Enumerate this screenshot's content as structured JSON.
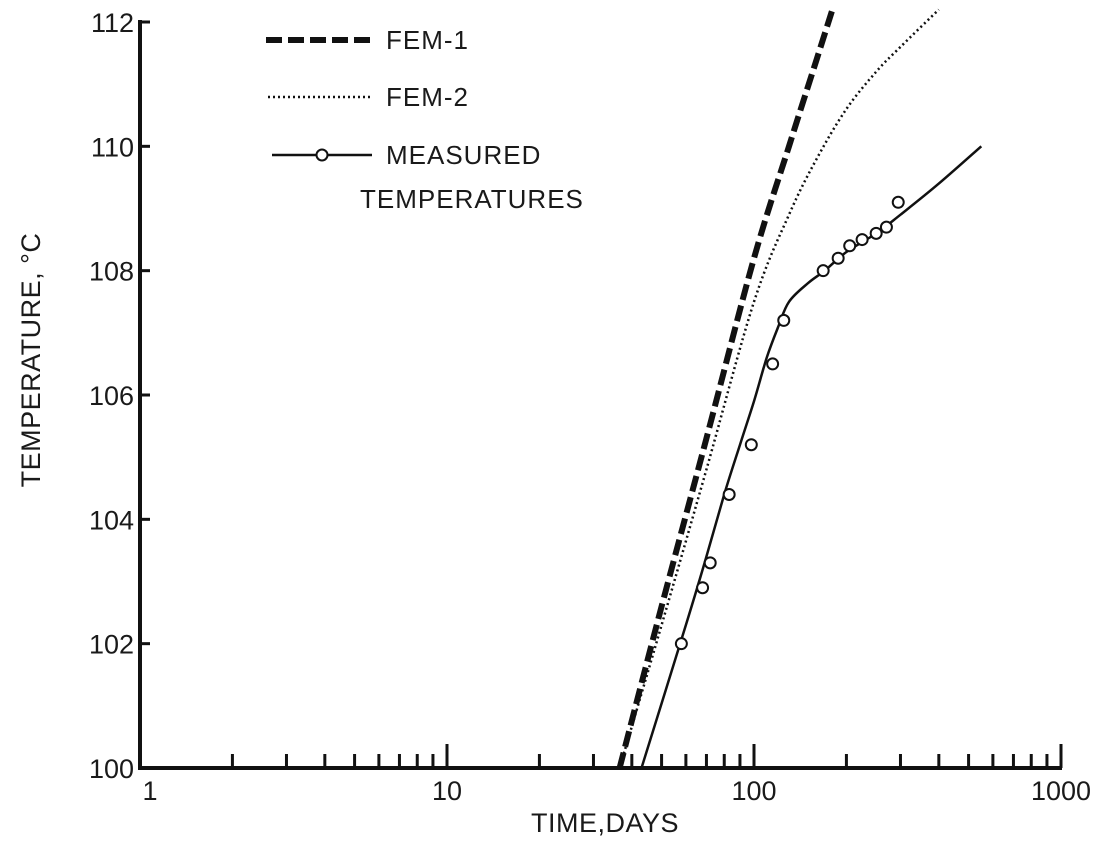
{
  "chart_data": {
    "type": "line",
    "title": "",
    "xlabel": "TIME,DAYS",
    "ylabel": "TEMPERATURE, °C",
    "xscale": "log",
    "xlim": [
      1,
      1000
    ],
    "ylim": [
      100,
      112
    ],
    "x_tick_labels": [
      "1",
      "10",
      "100",
      "1000"
    ],
    "x_ticks": [
      1,
      10,
      100,
      1000
    ],
    "y_tick_labels": [
      "100",
      "102",
      "104",
      "106",
      "108",
      "110",
      "112"
    ],
    "y_ticks": [
      100,
      102,
      104,
      106,
      108,
      110,
      112
    ],
    "grid": false,
    "legend_position": "top-left",
    "series": [
      {
        "name": "FEM-1",
        "style": "dashed-thick",
        "x": [
          36.5,
          50,
          70,
          100,
          130,
          160,
          180
        ],
        "y": [
          100.0,
          102.6,
          105.3,
          108.2,
          110.0,
          111.4,
          112.2
        ]
      },
      {
        "name": "FEM-2",
        "style": "dotted",
        "x": [
          36.5,
          50,
          70,
          100,
          130,
          160,
          200,
          250,
          300,
          400
        ],
        "y": [
          100.0,
          102.3,
          104.8,
          107.5,
          108.9,
          109.8,
          110.6,
          111.2,
          111.6,
          112.2
        ]
      },
      {
        "name": "MEASURED TEMPERATURES",
        "style": "solid-with-circles",
        "x": [
          43,
          60,
          70,
          80,
          90,
          100,
          110,
          120,
          130,
          150,
          170,
          200,
          250,
          300,
          400,
          550
        ],
        "y": [
          100.0,
          102.3,
          103.4,
          104.4,
          105.2,
          105.9,
          106.6,
          107.1,
          107.5,
          107.8,
          108.0,
          108.3,
          108.6,
          108.9,
          109.4,
          110.0
        ]
      }
    ],
    "measured_points": {
      "x": [
        58,
        68,
        72,
        83,
        98,
        115,
        125,
        168,
        188,
        205,
        225,
        250,
        270,
        295
      ],
      "y": [
        102.0,
        102.9,
        103.3,
        104.4,
        105.2,
        106.5,
        107.2,
        108.0,
        108.2,
        108.4,
        108.5,
        108.6,
        108.7,
        109.1
      ]
    }
  },
  "legend": {
    "items": [
      {
        "label": "FEM-1"
      },
      {
        "label": "FEM-2"
      },
      {
        "label_line1": "MEASURED",
        "label_line2": "TEMPERATURES"
      }
    ]
  }
}
